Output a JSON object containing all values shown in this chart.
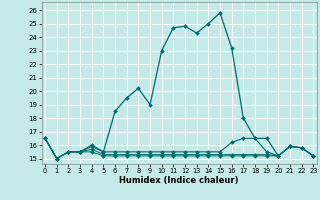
{
  "xlabel": "Humidex (Indice chaleur)",
  "background_color": "#c5e8e8",
  "grid_color": "#ffffff",
  "line_color": "#006b6b",
  "x": [
    0,
    1,
    2,
    3,
    4,
    5,
    6,
    7,
    8,
    9,
    10,
    11,
    12,
    13,
    14,
    15,
    16,
    17,
    18,
    19,
    20,
    21,
    22,
    23
  ],
  "y_main": [
    16.5,
    15.0,
    15.5,
    15.5,
    16.0,
    15.5,
    18.5,
    19.5,
    20.2,
    19.0,
    23.0,
    24.7,
    24.8,
    24.3,
    25.0,
    25.8,
    23.2,
    18.0,
    16.5,
    16.5,
    15.2,
    15.9,
    15.8,
    15.2
  ],
  "y_line2": [
    16.5,
    15.0,
    15.5,
    15.5,
    15.9,
    15.5,
    15.5,
    15.5,
    15.5,
    15.5,
    15.5,
    15.5,
    15.5,
    15.5,
    15.5,
    15.5,
    16.2,
    16.5,
    16.5,
    15.5,
    15.2,
    15.9,
    15.8,
    15.2
  ],
  "y_line3": [
    16.5,
    15.0,
    15.5,
    15.5,
    15.7,
    15.3,
    15.3,
    15.3,
    15.3,
    15.3,
    15.3,
    15.3,
    15.3,
    15.3,
    15.3,
    15.3,
    15.3,
    15.3,
    15.3,
    15.3,
    15.2,
    15.9,
    15.8,
    15.2
  ],
  "y_line4": [
    16.5,
    15.0,
    15.5,
    15.5,
    15.5,
    15.2,
    15.2,
    15.2,
    15.2,
    15.2,
    15.2,
    15.2,
    15.2,
    15.2,
    15.2,
    15.2,
    15.2,
    15.2,
    15.2,
    15.2,
    15.2,
    15.9,
    15.8,
    15.2
  ],
  "ylim": [
    14.6,
    26.6
  ],
  "xlim": [
    -0.3,
    23.3
  ],
  "yticks": [
    15,
    16,
    17,
    18,
    19,
    20,
    21,
    22,
    23,
    24,
    25,
    26
  ],
  "xticks": [
    0,
    1,
    2,
    3,
    4,
    5,
    6,
    7,
    8,
    9,
    10,
    11,
    12,
    13,
    14,
    15,
    16,
    17,
    18,
    19,
    20,
    21,
    22,
    23
  ]
}
